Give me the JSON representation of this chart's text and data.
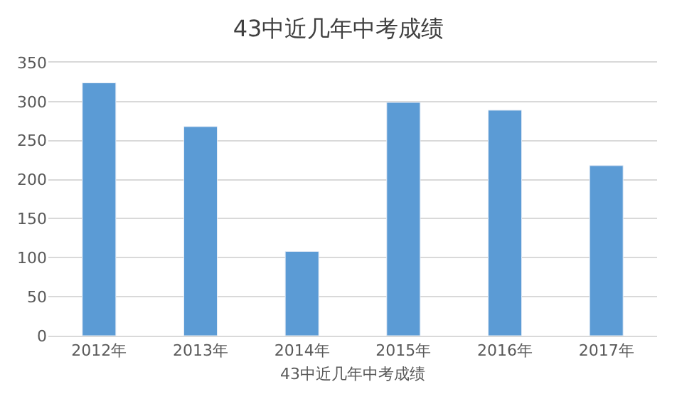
{
  "chart_data": {
    "type": "bar",
    "title": "43中近几年中考成绩",
    "xlabel": "43中近几年中考成绩",
    "categories": [
      "2012年",
      "2013年",
      "2014年",
      "2015年",
      "2016年",
      "2017年"
    ],
    "series": [
      {
        "color": "#5b9bd5",
        "values": [
          324,
          268,
          108,
          299,
          289,
          218
        ]
      }
    ],
    "ylim": [
      0,
      350
    ],
    "yticks": [
      0,
      50,
      100,
      150,
      200,
      250,
      300,
      350
    ],
    "grid": "y"
  }
}
